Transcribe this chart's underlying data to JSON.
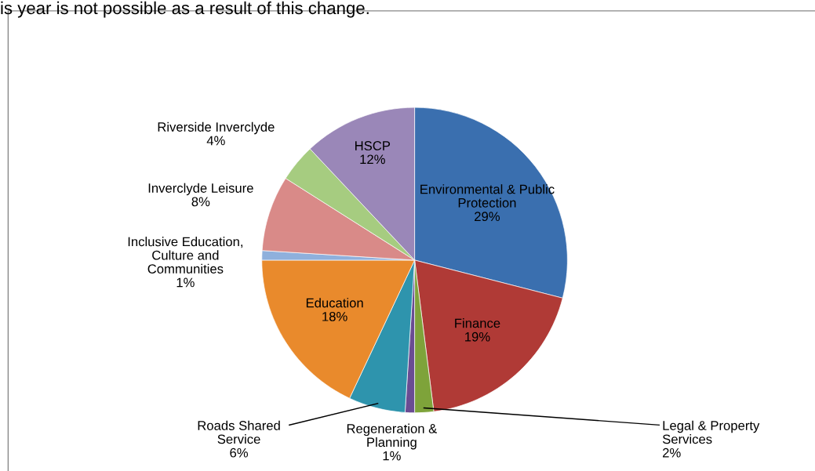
{
  "chart_data": {
    "type": "pie",
    "categories": [
      "Environmental & Public\nProtection",
      "Finance",
      "Legal & Property\nServices",
      "Regeneration &\nPlanning",
      "Roads Shared\nService",
      "Education",
      "Inclusive Education,\nCulture and\nCommunities",
      "Inverclyde Leisure",
      "Riverside Inverclyde",
      "HSCP"
    ],
    "values": [
      29,
      19,
      2,
      1,
      6,
      18,
      1,
      8,
      4,
      12
    ],
    "value_labels": [
      "29%",
      "19%",
      "2%",
      "1%",
      "6%",
      "18%",
      "1%",
      "8%",
      "4%",
      "12%"
    ],
    "colors": [
      "#3a6faf",
      "#b03a36",
      "#7ea33a",
      "#6a4c93",
      "#2e94ad",
      "#e98a2c",
      "#8fb0dc",
      "#d98a88",
      "#a6cc80",
      "#9a87b8"
    ],
    "annotations": [
      "is year is not possible as a result of this change."
    ],
    "legend": false
  }
}
